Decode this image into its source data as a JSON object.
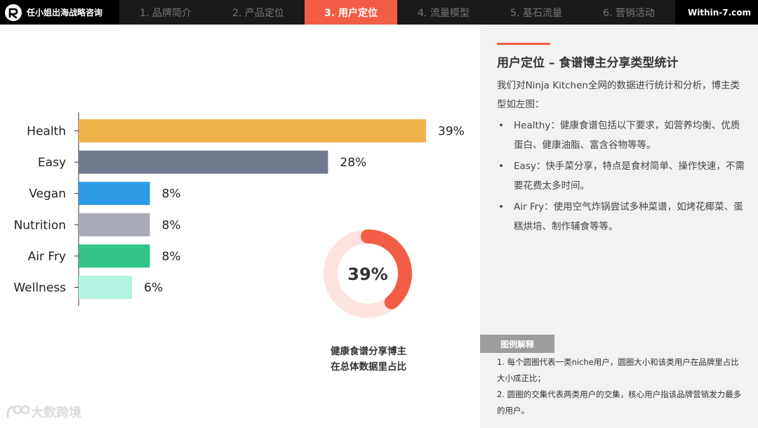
{
  "header": {
    "brand_name": "任小姐出海战略咨询",
    "site": "Within-7.com",
    "tabs": [
      {
        "label": "1. 品牌简介",
        "active": false
      },
      {
        "label": "2. 产品定位",
        "active": false
      },
      {
        "label": "3. 用户定位",
        "active": true
      },
      {
        "label": "4. 流量模型",
        "active": false
      },
      {
        "label": "5. 基石流量",
        "active": false
      },
      {
        "label": "6. 营销活动",
        "active": false
      }
    ]
  },
  "panel": {
    "title": "用户定位 – 食谱博主分享类型统计",
    "intro": "我们对Ninja Kitchen全网的数据进行统计和分析，博主类型如左图：",
    "bullets": [
      "Healthy：健康食谱包括以下要求，如营养均衡、优质蛋白、健康油脂、富含谷物等等。",
      "Easy：快手菜分享，特点是食材简单、操作快速，不需要花费太多时间。",
      "Air Fry：使用空气炸锅尝试多种菜谱，如烤花椰菜、蛋糕烘培、制作辅食等等。"
    ],
    "legend_tag": "图例解释",
    "legend_notes": [
      "1. 每个圆圈代表一类niche用户，圆圈大小和该类用户在品牌里占比大小成正比；",
      "2. 圆圈的交集代表两类用户的交集，核心用户指该品牌营销发力最多的用户。"
    ]
  },
  "chart_data": [
    {
      "type": "bar",
      "orientation": "horizontal",
      "categories": [
        "Health",
        "Easy",
        "Vegan",
        "Nutrition",
        "Air Fry",
        "Wellness"
      ],
      "values": [
        39,
        28,
        8,
        8,
        8,
        6
      ],
      "value_labels": [
        "39%",
        "28%",
        "8%",
        "8%",
        "8%",
        "6%"
      ],
      "colors": [
        "#f0b44c",
        "#727a8e",
        "#2d9ae6",
        "#a8abb7",
        "#33c48a",
        "#b1f3e1"
      ],
      "xlim": [
        0,
        39
      ],
      "grid": false
    },
    {
      "type": "pie",
      "style": "donut",
      "values": [
        39,
        61
      ],
      "center_label": "39%",
      "colors": [
        "#f25d45",
        "#fde3df"
      ],
      "caption_lines": [
        "健康食谱分享博主",
        "在总体数据里占比"
      ]
    }
  ],
  "watermark": "大数跨境"
}
